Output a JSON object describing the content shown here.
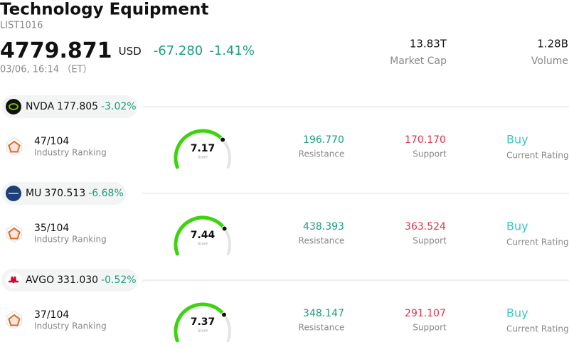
{
  "header": {
    "title": "Technology Equipment",
    "list_id": "LIST1016",
    "price": "4779.871",
    "currency": "USD",
    "change": "-67.280",
    "change_pct": "-1.41%",
    "datetime": "03/06, 16:14 （ET）",
    "market_cap": "13.83T",
    "market_cap_label": "Market Cap",
    "volume": "1.28B",
    "volume_label": "Volume"
  },
  "stocks": [
    {
      "ticker": "NVDA",
      "price": "177.805",
      "change_pct": "-3.02%",
      "ranking": "47/104",
      "ranking_label": "Industry Ranking",
      "score": 7.17,
      "score_label": "Score",
      "resistance": "196.770",
      "resistance_label": "Resistance",
      "support": "170.170",
      "support_label": "Support",
      "rating": "Buy",
      "rating_label": "Current Rating"
    },
    {
      "ticker": "MU",
      "price": "370.513",
      "change_pct": "-6.68%",
      "ranking": "35/104",
      "ranking_label": "Industry Ranking",
      "score": 7.44,
      "score_label": "Score",
      "resistance": "438.393",
      "resistance_label": "Resistance",
      "support": "363.524",
      "support_label": "Support",
      "rating": "Buy",
      "rating_label": "Current Rating"
    },
    {
      "ticker": "AVGO",
      "price": "331.030",
      "change_pct": "-0.52%",
      "ranking": "37/104",
      "ranking_label": "Industry Ranking",
      "score": 7.37,
      "score_label": "Score",
      "resistance": "348.147",
      "resistance_label": "Resistance",
      "support": "291.107",
      "support_label": "Support",
      "rating": "Buy",
      "rating_label": "Current Rating"
    }
  ]
}
